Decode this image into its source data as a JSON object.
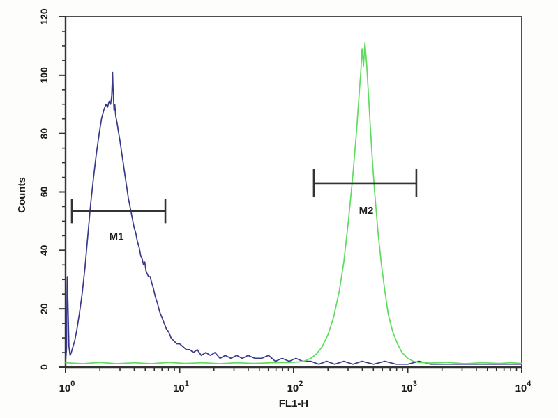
{
  "figure": {
    "kind": "flow-cytometry-histogram"
  },
  "chart_data": {
    "type": "line",
    "title": "",
    "xlabel": "FL1-H",
    "ylabel": "Counts",
    "x_scale": "log10",
    "x_ticks_exponents": [
      0,
      1,
      2,
      3,
      4
    ],
    "x_tick_base": "10",
    "ylim": [
      0,
      120
    ],
    "y_ticks": [
      0,
      20,
      40,
      60,
      80,
      100,
      120
    ],
    "y_minor_step": 5,
    "grid": "off",
    "legend": "none",
    "colors": {
      "frame": "#4f4f4f",
      "axis": "#333333",
      "text": "#1c1c1c",
      "marker": "#333333",
      "series_m1": "#39398a",
      "series_m2": "#5fdb5f"
    },
    "series": [
      {
        "id": "m1-histogram-curve",
        "name": "M1 population (blue)",
        "color": "#39398a",
        "points": [
          [
            0.0,
            2
          ],
          [
            0.008,
            6
          ],
          [
            0.015,
            31
          ],
          [
            0.022,
            20
          ],
          [
            0.03,
            7
          ],
          [
            0.04,
            4
          ],
          [
            0.05,
            5
          ],
          [
            0.065,
            7
          ],
          [
            0.08,
            9
          ],
          [
            0.1,
            13
          ],
          [
            0.12,
            18
          ],
          [
            0.145,
            25
          ],
          [
            0.17,
            34
          ],
          [
            0.195,
            45
          ],
          [
            0.22,
            56
          ],
          [
            0.245,
            65
          ],
          [
            0.27,
            73
          ],
          [
            0.295,
            80
          ],
          [
            0.315,
            85
          ],
          [
            0.335,
            88
          ],
          [
            0.355,
            90
          ],
          [
            0.368,
            89
          ],
          [
            0.382,
            91
          ],
          [
            0.395,
            90
          ],
          [
            0.405,
            93
          ],
          [
            0.412,
            101
          ],
          [
            0.418,
            94
          ],
          [
            0.425,
            88
          ],
          [
            0.432,
            90
          ],
          [
            0.44,
            86
          ],
          [
            0.45,
            84
          ],
          [
            0.462,
            81
          ],
          [
            0.475,
            78
          ],
          [
            0.49,
            74
          ],
          [
            0.505,
            70
          ],
          [
            0.52,
            66
          ],
          [
            0.535,
            62
          ],
          [
            0.55,
            58
          ],
          [
            0.565,
            55
          ],
          [
            0.58,
            52
          ],
          [
            0.6,
            48
          ],
          [
            0.615,
            46
          ],
          [
            0.63,
            43
          ],
          [
            0.645,
            41
          ],
          [
            0.66,
            38
          ],
          [
            0.672,
            37
          ],
          [
            0.684,
            35
          ],
          [
            0.695,
            36
          ],
          [
            0.705,
            33
          ],
          [
            0.715,
            32
          ],
          [
            0.728,
            31
          ],
          [
            0.742,
            31
          ],
          [
            0.755,
            29
          ],
          [
            0.77,
            27
          ],
          [
            0.788,
            24
          ],
          [
            0.805,
            22
          ],
          [
            0.825,
            19
          ],
          [
            0.845,
            17
          ],
          [
            0.865,
            15
          ],
          [
            0.885,
            13
          ],
          [
            0.905,
            12
          ],
          [
            0.925,
            10
          ],
          [
            0.95,
            9
          ],
          [
            0.975,
            8
          ],
          [
            1.0,
            8
          ],
          [
            1.03,
            7
          ],
          [
            1.06,
            6
          ],
          [
            1.09,
            6
          ],
          [
            1.12,
            5
          ],
          [
            1.155,
            6
          ],
          [
            1.19,
            4
          ],
          [
            1.23,
            5
          ],
          [
            1.27,
            4
          ],
          [
            1.31,
            5
          ],
          [
            1.355,
            3
          ],
          [
            1.4,
            4
          ],
          [
            1.45,
            3
          ],
          [
            1.5,
            4
          ],
          [
            1.55,
            3
          ],
          [
            1.6,
            4
          ],
          [
            1.66,
            3
          ],
          [
            1.72,
            3
          ],
          [
            1.78,
            4
          ],
          [
            1.84,
            2
          ],
          [
            1.9,
            3
          ],
          [
            1.96,
            2
          ],
          [
            2.02,
            3
          ],
          [
            2.08,
            2
          ],
          [
            2.15,
            2
          ],
          [
            2.22,
            1
          ],
          [
            2.29,
            2
          ],
          [
            2.36,
            1
          ],
          [
            2.44,
            2
          ],
          [
            2.52,
            1
          ],
          [
            2.6,
            2
          ],
          [
            2.7,
            1
          ],
          [
            2.8,
            2
          ],
          [
            2.9,
            1
          ],
          [
            3.0,
            1
          ],
          [
            3.1,
            2
          ],
          [
            3.2,
            1
          ],
          [
            3.35,
            1
          ],
          [
            3.5,
            1
          ],
          [
            3.65,
            1
          ],
          [
            3.8,
            1
          ],
          [
            3.9,
            1
          ],
          [
            4.0,
            1
          ]
        ]
      },
      {
        "id": "m2-histogram-curve",
        "name": "M2 population (green)",
        "color": "#5fdb5f",
        "points": [
          [
            0.0,
            1.5
          ],
          [
            0.15,
            1.2
          ],
          [
            0.3,
            1.6
          ],
          [
            0.45,
            1.2
          ],
          [
            0.6,
            1.5
          ],
          [
            0.75,
            1.2
          ],
          [
            0.9,
            1.6
          ],
          [
            1.05,
            1.3
          ],
          [
            1.2,
            1.5
          ],
          [
            1.35,
            1.2
          ],
          [
            1.5,
            1.5
          ],
          [
            1.65,
            1.3
          ],
          [
            1.8,
            1.5
          ],
          [
            1.95,
            1.6
          ],
          [
            2.05,
            1.8
          ],
          [
            2.1,
            2.2
          ],
          [
            2.15,
            3
          ],
          [
            2.2,
            4.5
          ],
          [
            2.25,
            7
          ],
          [
            2.3,
            11
          ],
          [
            2.35,
            17
          ],
          [
            2.4,
            26
          ],
          [
            2.44,
            36
          ],
          [
            2.48,
            50
          ],
          [
            2.52,
            66
          ],
          [
            2.55,
            80
          ],
          [
            2.57,
            91
          ],
          [
            2.59,
            102
          ],
          [
            2.6,
            109
          ],
          [
            2.612,
            103
          ],
          [
            2.625,
            111
          ],
          [
            2.64,
            104
          ],
          [
            2.655,
            94
          ],
          [
            2.67,
            84
          ],
          [
            2.69,
            71
          ],
          [
            2.71,
            60
          ],
          [
            2.74,
            46
          ],
          [
            2.77,
            35
          ],
          [
            2.8,
            26
          ],
          [
            2.83,
            18
          ],
          [
            2.87,
            12
          ],
          [
            2.91,
            8
          ],
          [
            2.95,
            5
          ],
          [
            3.0,
            3
          ],
          [
            3.05,
            2
          ],
          [
            3.1,
            1.6
          ],
          [
            3.2,
            1.4
          ],
          [
            3.35,
            1.6
          ],
          [
            3.5,
            1.2
          ],
          [
            3.65,
            1.5
          ],
          [
            3.8,
            1.3
          ],
          [
            3.9,
            1.5
          ],
          [
            4.0,
            1.3
          ]
        ]
      }
    ],
    "markers": [
      {
        "label": "M1",
        "from_log": 0.055,
        "to_log": 0.875,
        "level_counts": 53.5,
        "cap_half_counts": 4.2,
        "label_x_log": 0.447,
        "label_counts": 43.5
      },
      {
        "label": "M2",
        "from_log": 2.177,
        "to_log": 3.076,
        "level_counts": 63,
        "cap_half_counts": 4.8,
        "label_x_log": 2.636,
        "label_counts": 52.5
      }
    ]
  }
}
